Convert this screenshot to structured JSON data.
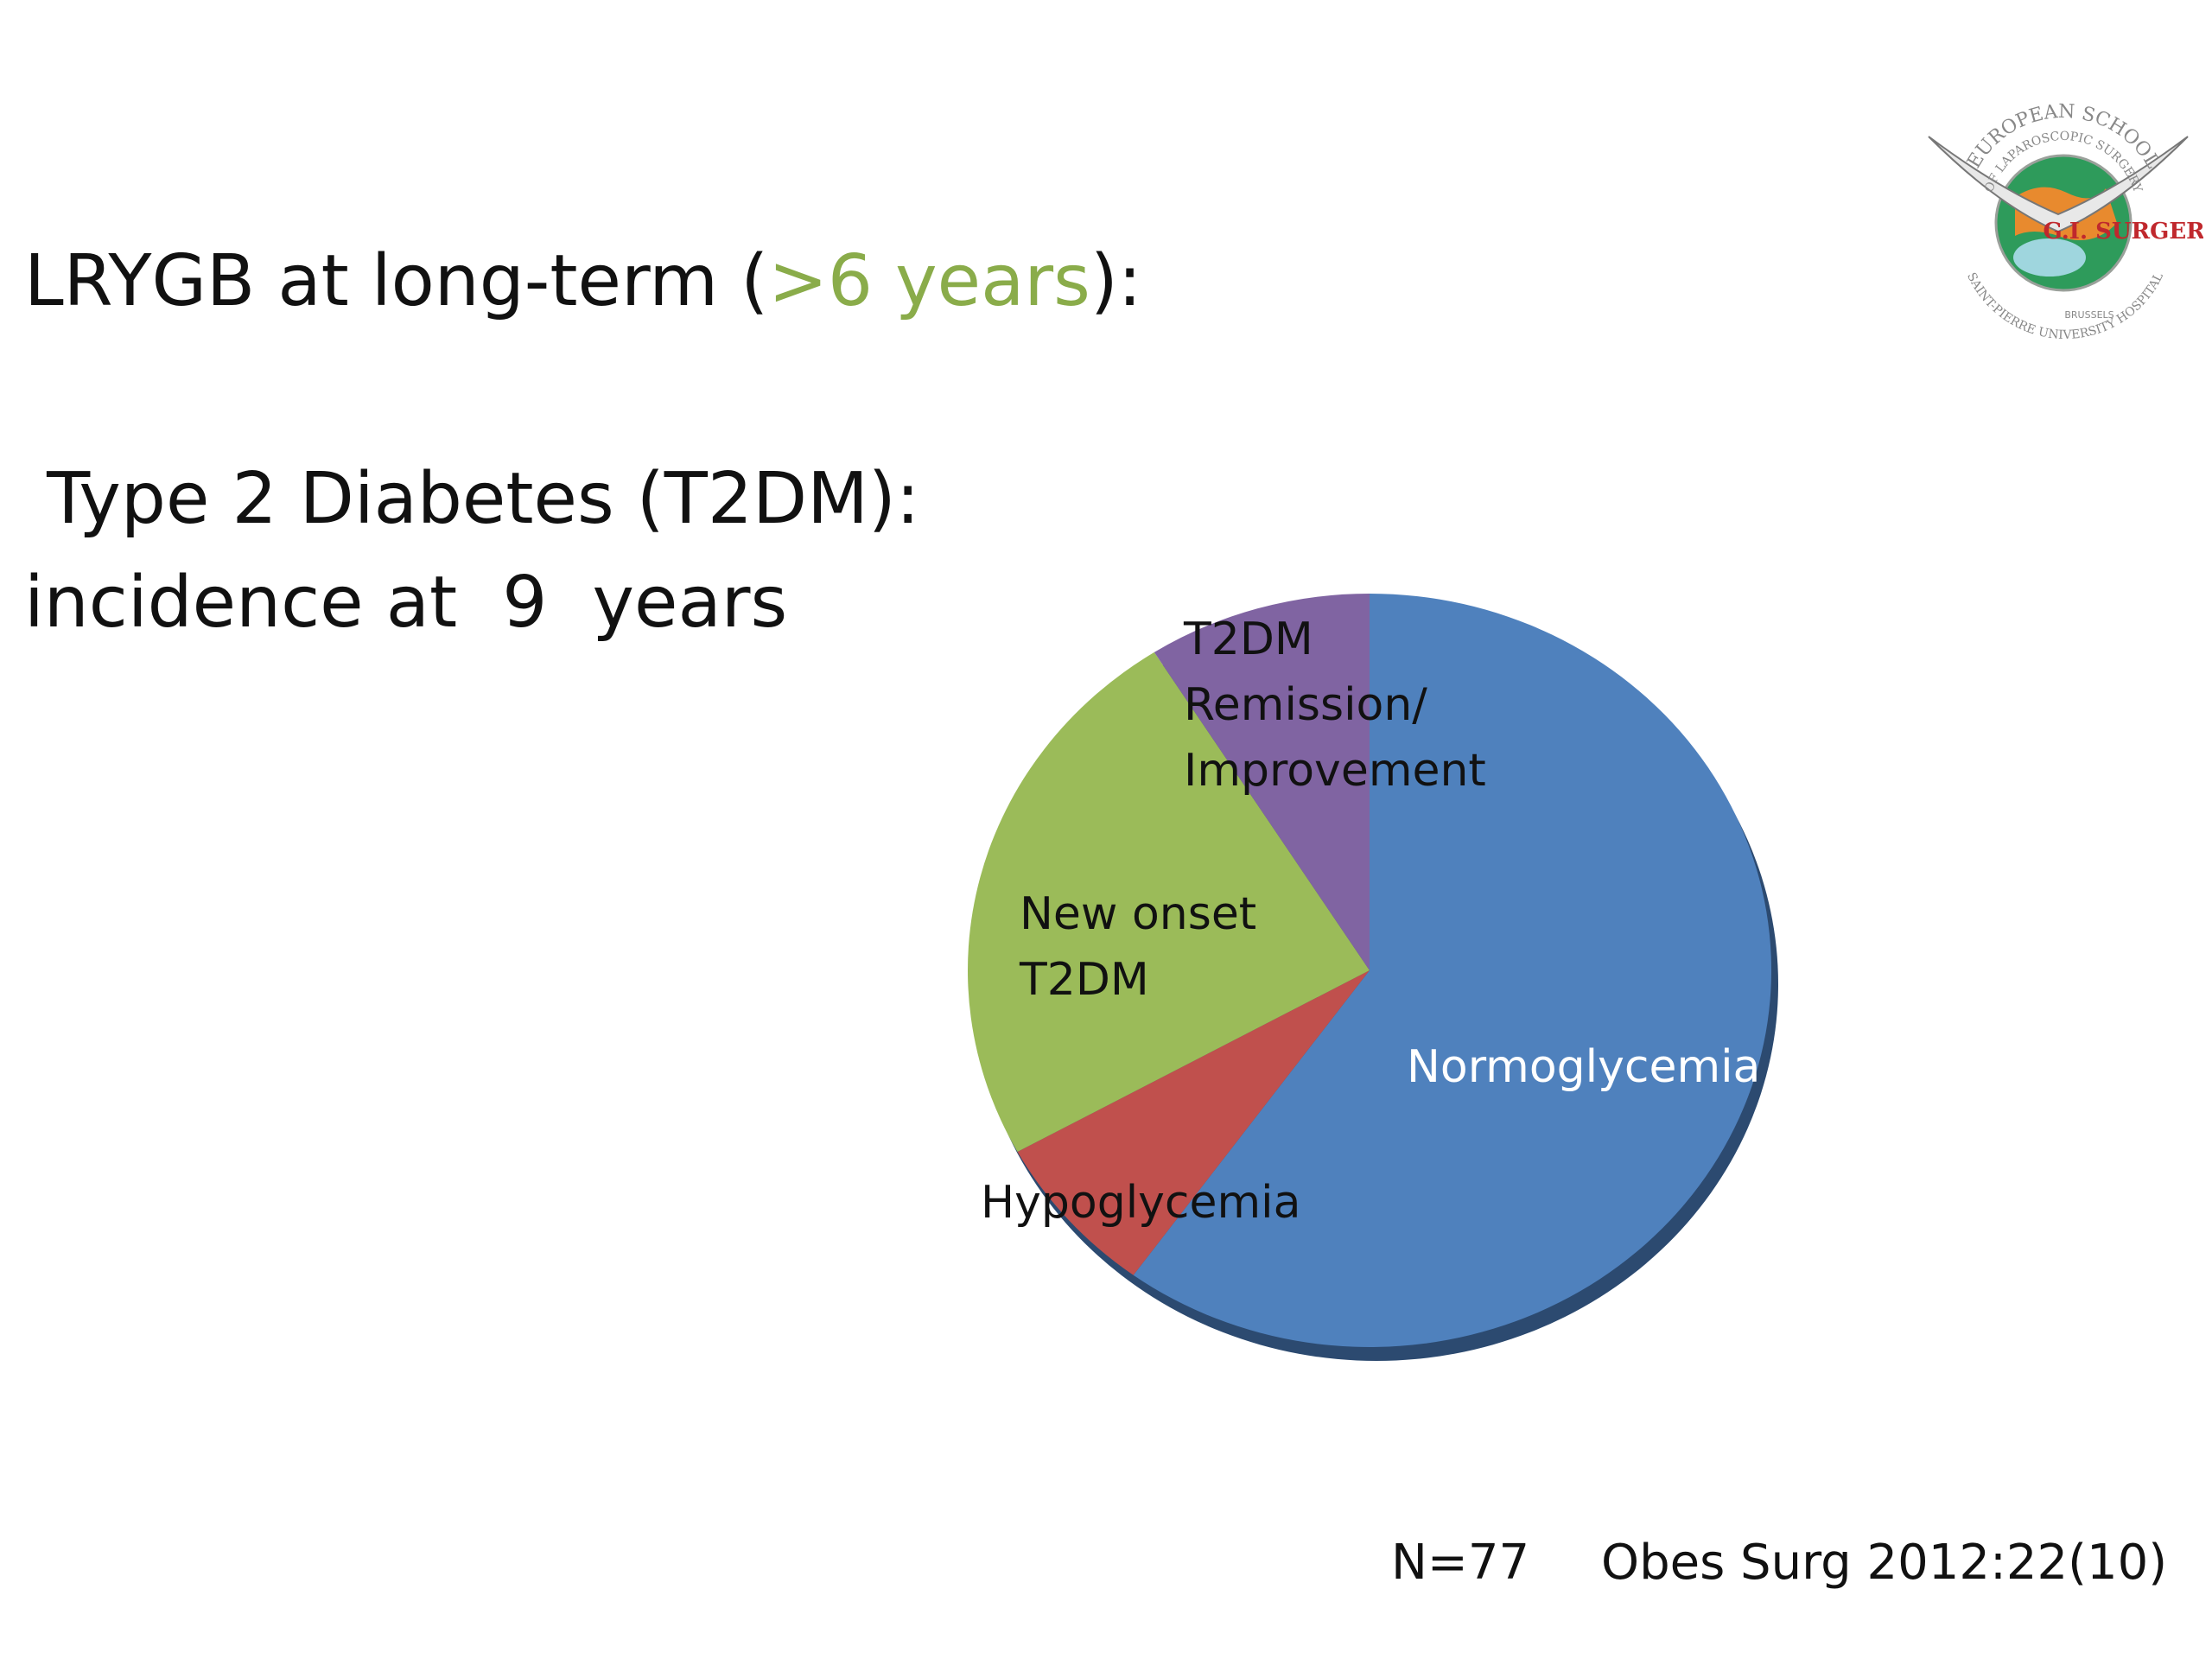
{
  "slide": {
    "title_prefix": "LRYGB at long-term (",
    "title_highlight": ">6 years",
    "title_suffix": "):",
    "subtitle_line1": " Type 2 Diabetes (T2DM):",
    "subtitle_line2": "incidence at  9  years",
    "footer_n": "N=77",
    "footer_source": "Obes Surg 2012:22(10)",
    "logo": {
      "text_top": "EUROPEAN SCHOOL",
      "text_mid": "OF LAPAROSCOPIC SURGERY",
      "text_brand": "G.I. SURGERY",
      "text_bottom1": "BRUSSELS",
      "text_bottom2": "SAINT-PIERRE UNIVERSITY HOSPITAL"
    },
    "colors": {
      "highlight": "#8aac4a"
    }
  },
  "chart_data": {
    "type": "pie",
    "slices": [
      {
        "label": "Normoglycemia",
        "value": 60,
        "color": "#4f81bd",
        "text_color": "#ffffff"
      },
      {
        "label": "Hypoglycemia",
        "value": 7,
        "color": "#c0504d",
        "text_color": "#111111"
      },
      {
        "label": "New onset T2DM",
        "label_lines": [
          "New onset",
          "T2DM"
        ],
        "value": 24,
        "color": "#9bbb59",
        "text_color": "#111111"
      },
      {
        "label": "T2DM Remission/ Improvement",
        "label_lines": [
          "T2DM",
          "Remission/",
          "Improvement"
        ],
        "value": 9,
        "color": "#8064a2",
        "text_color": "#111111"
      }
    ],
    "start_angle": "12 o'clock",
    "direction": "clockwise",
    "legend": "none"
  }
}
